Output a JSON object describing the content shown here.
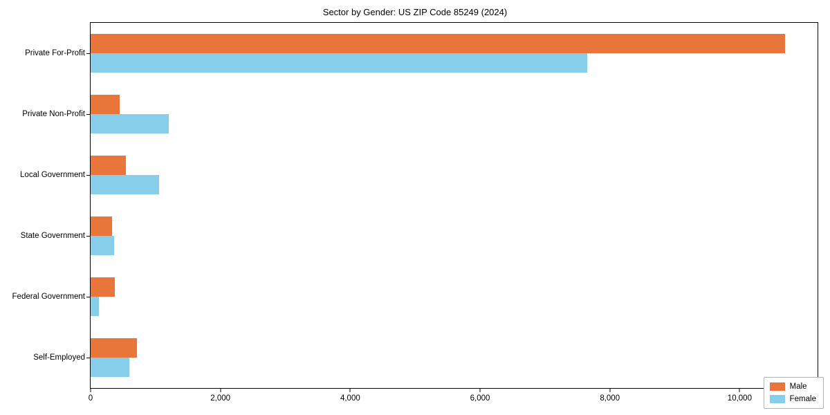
{
  "chart_data": {
    "type": "bar",
    "orientation": "horizontal",
    "title": "Sector by Gender: US ZIP Code 85249 (2024)",
    "categories": [
      "Private For-Profit",
      "Private Non-Profit",
      "Local Government",
      "State Government",
      "Federal Government",
      "Self-Employed"
    ],
    "series": [
      {
        "name": "Male",
        "color": "#e8763b",
        "values": [
          10700,
          450,
          540,
          330,
          370,
          710
        ]
      },
      {
        "name": "Female",
        "color": "#87ceeb",
        "values": [
          7650,
          1200,
          1060,
          360,
          130,
          600
        ]
      }
    ],
    "xlim": [
      0,
      11200
    ],
    "xticks": [
      0,
      2000,
      4000,
      6000,
      8000,
      10000
    ],
    "xtick_labels": [
      "0",
      "2,000",
      "4,000",
      "6,000",
      "8,000",
      "10,000"
    ],
    "xlabel": "",
    "ylabel": "",
    "grid": false,
    "legend": {
      "position": "lower right",
      "entries": [
        "Male",
        "Female"
      ]
    }
  }
}
